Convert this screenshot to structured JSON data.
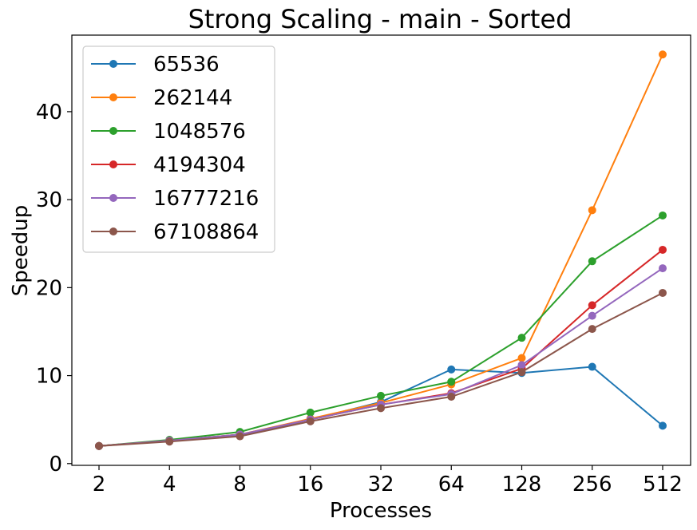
{
  "chart_data": {
    "type": "line",
    "title": "Strong Scaling - main  - Sorted",
    "xlabel": "Processes",
    "ylabel": "Speedup",
    "x_scale": "log2 (categorical ticks)",
    "x": [
      "2",
      "4",
      "8",
      "16",
      "32",
      "64",
      "128",
      "256",
      "512"
    ],
    "y_ticks": [
      "0",
      "10",
      "20",
      "30",
      "40"
    ],
    "ylim": [
      -0.2,
      48.7
    ],
    "grid": false,
    "legend_position": "top-left",
    "series": [
      {
        "name": "65536",
        "color": "#1f77b4",
        "values": [
          2.0,
          2.6,
          3.2,
          5.0,
          7.0,
          10.7,
          10.3,
          11.0,
          4.3
        ]
      },
      {
        "name": "262144",
        "color": "#ff7f0e",
        "values": [
          2.0,
          2.6,
          3.3,
          5.1,
          6.9,
          9.0,
          12.0,
          28.8,
          46.5
        ]
      },
      {
        "name": "1048576",
        "color": "#2ca02c",
        "values": [
          2.0,
          2.7,
          3.6,
          5.8,
          7.7,
          9.3,
          14.3,
          23.0,
          28.2
        ]
      },
      {
        "name": "4194304",
        "color": "#d62728",
        "values": [
          2.0,
          2.6,
          3.3,
          5.0,
          6.7,
          8.0,
          10.8,
          18.0,
          24.3
        ]
      },
      {
        "name": "16777216",
        "color": "#9467bd",
        "values": [
          2.0,
          2.6,
          3.3,
          5.0,
          6.7,
          7.9,
          11.2,
          16.8,
          22.2
        ]
      },
      {
        "name": "67108864",
        "color": "#8c564b",
        "values": [
          2.0,
          2.5,
          3.1,
          4.8,
          6.3,
          7.6,
          10.4,
          15.3,
          19.4
        ]
      }
    ]
  }
}
